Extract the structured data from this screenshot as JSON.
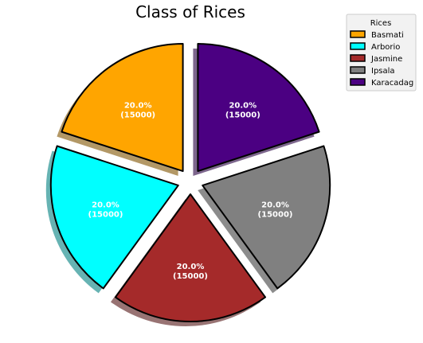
{
  "chart_data": {
    "type": "pie",
    "title": "Class of Rices",
    "labels": [
      "Basmati",
      "Arborio",
      "Jasmine",
      "Ipsala",
      "Karacadag"
    ],
    "values": [
      15000,
      15000,
      15000,
      15000,
      15000
    ],
    "percent_labels": [
      "20.0%",
      "20.0%",
      "20.0%",
      "20.0%",
      "20.0%"
    ],
    "count_labels": [
      "(15000)",
      "(15000)",
      "(15000)",
      "(15000)",
      "(15000)"
    ],
    "colors": [
      "#ffa500",
      "#00ffff",
      "#a52a2a",
      "#808080",
      "#4b0082"
    ],
    "legend_title": "Rices",
    "legend_position": "top-right",
    "start_angle": 90,
    "exploded": true,
    "shadow": true
  }
}
